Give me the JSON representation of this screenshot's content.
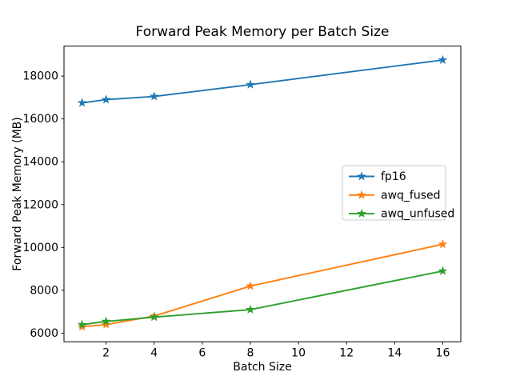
{
  "chart_data": {
    "type": "line",
    "title": "Forward Peak Memory per Batch Size",
    "xlabel": "Batch Size",
    "ylabel": "Forward Peak Memory (MB)",
    "x": [
      1,
      2,
      4,
      8,
      16
    ],
    "series": [
      {
        "name": "fp16",
        "color": "#1f77b4",
        "values": [
          16750,
          16900,
          17050,
          17600,
          18750
        ]
      },
      {
        "name": "awq_fused",
        "color": "#ff7f0e",
        "values": [
          6300,
          6400,
          6800,
          8200,
          10150
        ]
      },
      {
        "name": "awq_unfused",
        "color": "#2ca02c",
        "values": [
          6400,
          6550,
          6750,
          7100,
          8900
        ]
      }
    ],
    "xlim": [
      0.25,
      16.75
    ],
    "ylim": [
      5600,
      19400
    ],
    "x_ticks": [
      2,
      4,
      6,
      8,
      10,
      12,
      14,
      16
    ],
    "y_ticks": [
      6000,
      8000,
      10000,
      12000,
      14000,
      16000,
      18000
    ],
    "marker": "star",
    "grid": false,
    "legend": {
      "position": "center-right",
      "entries": [
        "fp16",
        "awq_fused",
        "awq_unfused"
      ]
    },
    "colors": {
      "spine": "#000000",
      "background": "#ffffff",
      "legend_border": "#cccccc"
    }
  }
}
